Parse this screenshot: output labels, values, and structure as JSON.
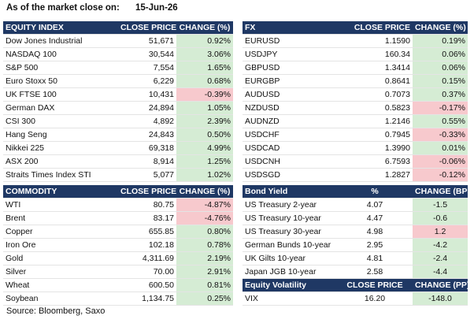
{
  "header": {
    "label": "As of the market close on:",
    "date": "15-Jun-26"
  },
  "equity": {
    "columns": [
      "EQUITY INDEX",
      "CLOSE PRICE",
      "CHANGE (%)"
    ],
    "rows": [
      {
        "name": "Dow Jones Industrial",
        "price": "51,671",
        "change": "0.92%",
        "dir": "pos"
      },
      {
        "name": "NASDAQ 100",
        "price": "30,544",
        "change": "3.06%",
        "dir": "pos"
      },
      {
        "name": "S&P 500",
        "price": "7,554",
        "change": "1.65%",
        "dir": "pos"
      },
      {
        "name": "Euro Stoxx 50",
        "price": "6,229",
        "change": "0.68%",
        "dir": "pos"
      },
      {
        "name": "UK FTSE 100",
        "price": "10,431",
        "change": "-0.39%",
        "dir": "neg"
      },
      {
        "name": "German DAX",
        "price": "24,894",
        "change": "1.05%",
        "dir": "pos"
      },
      {
        "name": "CSI 300",
        "price": "4,892",
        "change": "2.39%",
        "dir": "pos"
      },
      {
        "name": "Hang Seng",
        "price": "24,843",
        "change": "0.50%",
        "dir": "pos"
      },
      {
        "name": "Nikkei 225",
        "price": "69,318",
        "change": "4.99%",
        "dir": "pos"
      },
      {
        "name": "ASX 200",
        "price": "8,914",
        "change": "1.25%",
        "dir": "pos"
      },
      {
        "name": "Straits Times Index STI",
        "price": "5,077",
        "change": "1.02%",
        "dir": "pos"
      }
    ]
  },
  "fx": {
    "columns": [
      "FX",
      "CLOSE PRICE",
      "CHANGE (%)"
    ],
    "rows": [
      {
        "name": "EURUSD",
        "price": "1.1590",
        "change": "0.19%",
        "dir": "pos"
      },
      {
        "name": "USDJPY",
        "price": "160.34",
        "change": "0.06%",
        "dir": "pos"
      },
      {
        "name": "GBPUSD",
        "price": "1.3414",
        "change": "0.06%",
        "dir": "pos"
      },
      {
        "name": "EURGBP",
        "price": "0.8641",
        "change": "0.15%",
        "dir": "pos"
      },
      {
        "name": "AUDUSD",
        "price": "0.7073",
        "change": "0.37%",
        "dir": "pos"
      },
      {
        "name": "NZDUSD",
        "price": "0.5823",
        "change": "-0.17%",
        "dir": "neg"
      },
      {
        "name": "AUDNZD",
        "price": "1.2146",
        "change": "0.55%",
        "dir": "pos"
      },
      {
        "name": "USDCHF",
        "price": "0.7945",
        "change": "-0.33%",
        "dir": "neg"
      },
      {
        "name": "USDCAD",
        "price": "1.3990",
        "change": "0.01%",
        "dir": "pos"
      },
      {
        "name": "USDCNH",
        "price": "6.7593",
        "change": "-0.06%",
        "dir": "neg"
      },
      {
        "name": "USDSGD",
        "price": "1.2827",
        "change": "-0.12%",
        "dir": "neg"
      }
    ]
  },
  "commodity": {
    "columns": [
      "COMMODITY",
      "CLOSE PRICE",
      "CHANGE (%)"
    ],
    "rows": [
      {
        "name": "WTI",
        "price": "80.75",
        "change": "-4.87%",
        "dir": "neg"
      },
      {
        "name": "Brent",
        "price": "83.17",
        "change": "-4.76%",
        "dir": "neg"
      },
      {
        "name": "Copper",
        "price": "655.85",
        "change": "0.80%",
        "dir": "pos"
      },
      {
        "name": "Iron Ore",
        "price": "102.18",
        "change": "0.78%",
        "dir": "pos"
      },
      {
        "name": "Gold",
        "price": "4,311.69",
        "change": "2.19%",
        "dir": "pos"
      },
      {
        "name": "Silver",
        "price": "70.00",
        "change": "2.91%",
        "dir": "pos"
      },
      {
        "name": "Wheat",
        "price": "600.50",
        "change": "0.81%",
        "dir": "pos"
      },
      {
        "name": "Soybean",
        "price": "1,134.75",
        "change": "0.25%",
        "dir": "pos"
      }
    ]
  },
  "bonds": {
    "columns": [
      "Bond Yield",
      "%",
      "CHANGE (BPS)"
    ],
    "rows": [
      {
        "name": "US Treasury 2-year",
        "price": "4.07",
        "change": "-1.5",
        "dir": "pos"
      },
      {
        "name": "US Treasury 10-year",
        "price": "4.47",
        "change": "-0.6",
        "dir": "pos"
      },
      {
        "name": "US Treasury 30-year",
        "price": "4.98",
        "change": "1.2",
        "dir": "neg"
      },
      {
        "name": "German Bunds 10-year",
        "price": "2.95",
        "change": "-4.2",
        "dir": "pos"
      },
      {
        "name": "UK Gilts 10-year",
        "price": "4.81",
        "change": "-2.4",
        "dir": "pos"
      },
      {
        "name": "Japan JGB 10-year",
        "price": "2.58",
        "change": "-4.4",
        "dir": "pos"
      }
    ]
  },
  "volatility": {
    "columns": [
      "Equity Volatility",
      "CLOSE PRICE",
      "CHANGE (PP)"
    ],
    "rows": [
      {
        "name": "VIX",
        "price": "16.20",
        "change": "-148.0",
        "dir": "pos"
      }
    ]
  },
  "source": "Source: Bloomberg, Saxo",
  "colors": {
    "header_bg": "#1f3864",
    "positive_bg": "#d5ecd4",
    "negative_bg": "#f7c9cd"
  }
}
